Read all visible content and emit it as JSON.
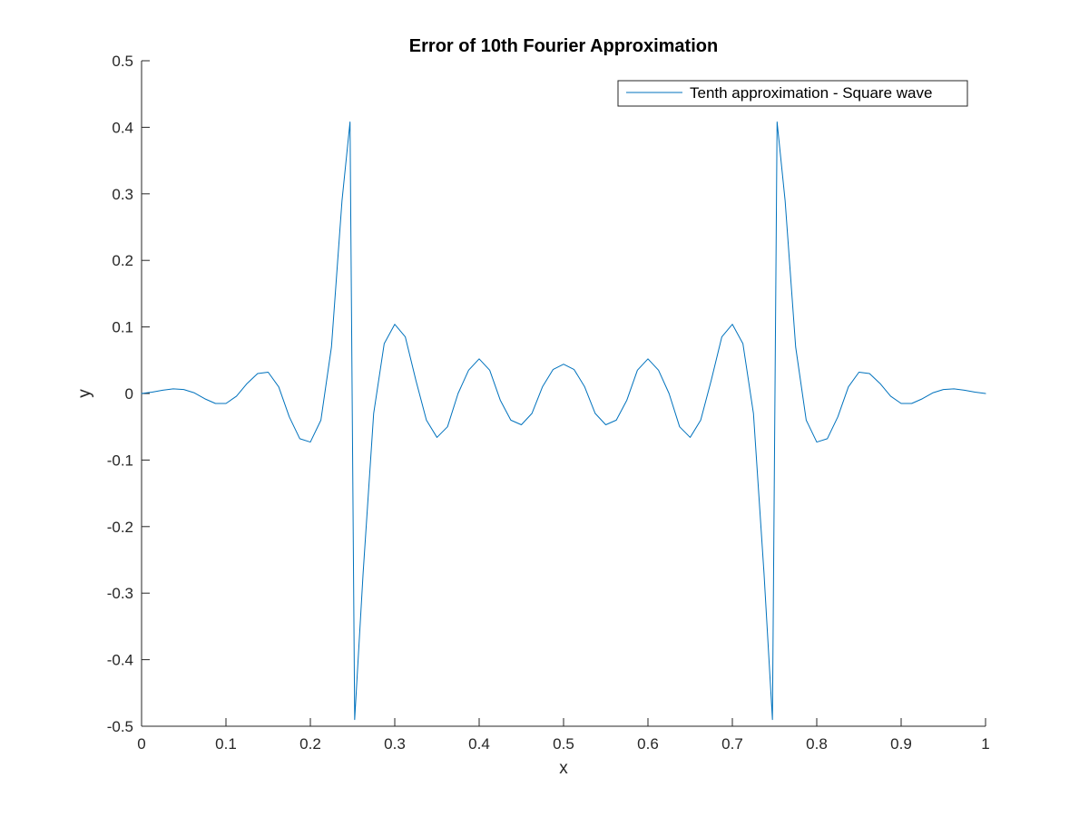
{
  "chart_data": {
    "type": "line",
    "title": "Error of 10th Fourier Approximation",
    "xlabel": "x",
    "ylabel": "y",
    "xlim": [
      0,
      1
    ],
    "ylim": [
      -0.5,
      0.5
    ],
    "xticks": [
      0,
      0.1,
      0.2,
      0.3,
      0.4,
      0.5,
      0.6,
      0.7,
      0.8,
      0.9,
      1
    ],
    "xtick_labels": [
      "0",
      "0.1",
      "0.2",
      "0.3",
      "0.4",
      "0.5",
      "0.6",
      "0.7",
      "0.8",
      "0.9",
      "1"
    ],
    "yticks": [
      -0.5,
      -0.4,
      -0.3,
      -0.2,
      -0.1,
      0,
      0.1,
      0.2,
      0.3,
      0.4,
      0.5
    ],
    "ytick_labels": [
      "-0.5",
      "-0.4",
      "-0.3",
      "-0.2",
      "-0.1",
      "0",
      "0.1",
      "0.2",
      "0.3",
      "0.4",
      "0.5"
    ],
    "grid": false,
    "legend_position": "top-right",
    "colors": {
      "series": "#0072BD",
      "axes": "#262626"
    },
    "series": [
      {
        "name": "Tenth approximation - Square wave",
        "x": [
          0,
          0.0125,
          0.025,
          0.0375,
          0.05,
          0.0625,
          0.075,
          0.0875,
          0.1,
          0.1125,
          0.125,
          0.1375,
          0.15,
          0.1625,
          0.175,
          0.1875,
          0.2,
          0.2125,
          0.225,
          0.2375,
          0.247,
          0.2525,
          0.2625,
          0.275,
          0.2875,
          0.3,
          0.3125,
          0.325,
          0.3375,
          0.35,
          0.3625,
          0.375,
          0.3875,
          0.4,
          0.4125,
          0.425,
          0.4375,
          0.45,
          0.4625,
          0.475,
          0.4875,
          0.5,
          0.5125,
          0.525,
          0.5375,
          0.55,
          0.5625,
          0.575,
          0.5875,
          0.6,
          0.6125,
          0.625,
          0.6375,
          0.65,
          0.6625,
          0.675,
          0.6875,
          0.7,
          0.7125,
          0.725,
          0.7375,
          0.7475,
          0.753,
          0.7625,
          0.775,
          0.7875,
          0.8,
          0.8125,
          0.825,
          0.8375,
          0.85,
          0.8625,
          0.875,
          0.8875,
          0.9,
          0.9125,
          0.925,
          0.9375,
          0.95,
          0.9625,
          0.975,
          0.9875,
          1
        ],
        "values": [
          0,
          0.002,
          0.005,
          0.007,
          0.006,
          0.001,
          -0.008,
          -0.015,
          -0.015,
          -0.004,
          0.015,
          0.03,
          0.032,
          0.01,
          -0.035,
          -0.068,
          -0.073,
          -0.04,
          0.07,
          0.29,
          0.408,
          -0.49,
          -0.27,
          -0.03,
          0.075,
          0.104,
          0.085,
          0.02,
          -0.04,
          -0.066,
          -0.05,
          0,
          0.035,
          0.052,
          0.035,
          -0.01,
          -0.04,
          -0.047,
          -0.03,
          0.01,
          0.036,
          0.044,
          0.036,
          0.01,
          -0.03,
          -0.047,
          -0.04,
          -0.01,
          0.035,
          0.052,
          0.035,
          0,
          -0.05,
          -0.066,
          -0.04,
          0.02,
          0.085,
          0.104,
          0.075,
          -0.03,
          -0.27,
          -0.49,
          0.408,
          0.29,
          0.07,
          -0.04,
          -0.073,
          -0.068,
          -0.035,
          0.01,
          0.032,
          0.03,
          0.015,
          -0.004,
          -0.015,
          -0.015,
          -0.008,
          0.001,
          0.006,
          0.007,
          0.005,
          0.002,
          0
        ]
      }
    ]
  }
}
